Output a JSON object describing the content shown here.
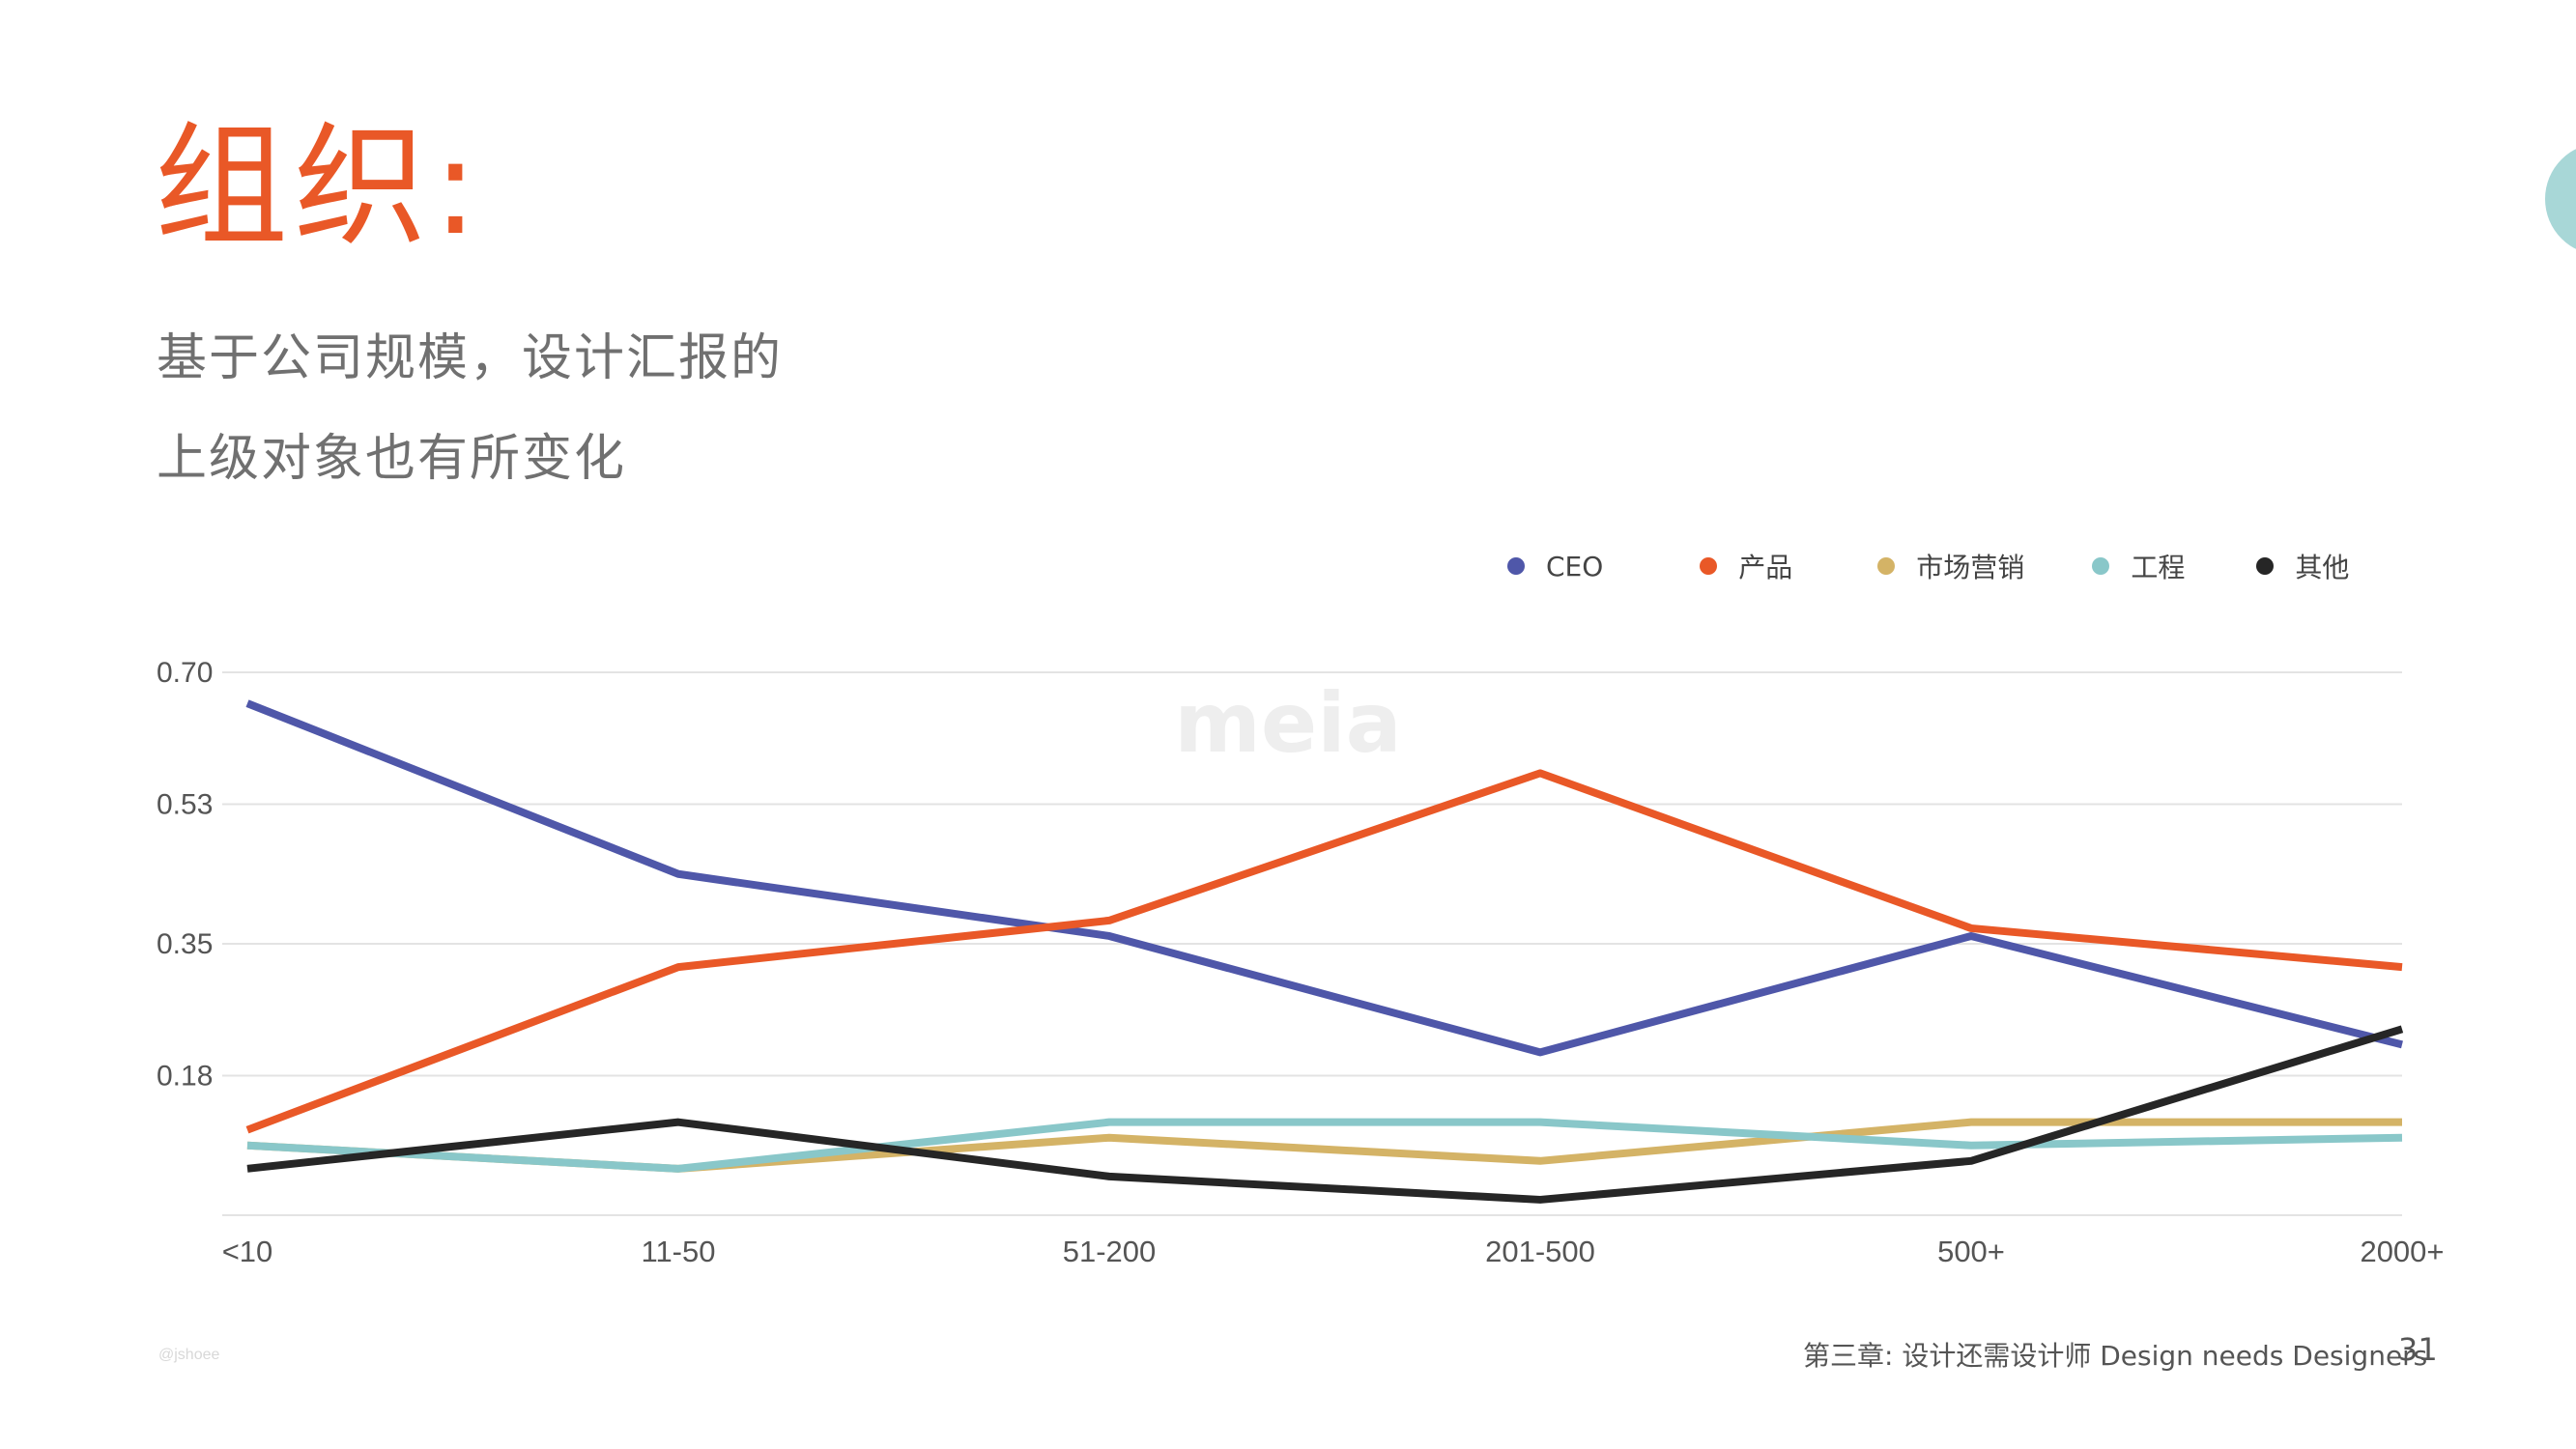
{
  "slide": {
    "title": "组织:",
    "subtitle_line1": "基于公司规模，设计汇报的",
    "subtitle_line2": "上级对象也有所变化",
    "footer": "第三章: 设计还需设计师 Design needs Designers",
    "page_number": "31",
    "handle": "@jshoee"
  },
  "colors": {
    "accent": "#e95827",
    "CEO": "#4f57a9",
    "产品": "#e95827",
    "市场营销": "#d4b366",
    "工程": "#89c7c9",
    "其他": "#262626"
  },
  "chart_data": {
    "type": "line",
    "categories": [
      "<10",
      "11-50",
      "51-200",
      "201-500",
      "500+",
      "2000+"
    ],
    "y_ticks": [
      "0.70",
      "0.53",
      "0.35",
      "0.18"
    ],
    "ylim": [
      0,
      0.7
    ],
    "grid": true,
    "legend_position": "top-right",
    "watermark": "meia",
    "series": [
      {
        "name": "CEO",
        "values": [
          0.66,
          0.44,
          0.36,
          0.21,
          0.36,
          0.22
        ]
      },
      {
        "name": "产品",
        "values": [
          0.11,
          0.32,
          0.38,
          0.57,
          0.37,
          0.32
        ]
      },
      {
        "name": "市场营销",
        "values": [
          0.09,
          0.06,
          0.1,
          0.07,
          0.12,
          0.12
        ]
      },
      {
        "name": "工程",
        "values": [
          0.09,
          0.06,
          0.12,
          0.12,
          0.09,
          0.1
        ]
      },
      {
        "name": "其他",
        "values": [
          0.06,
          0.12,
          0.05,
          0.02,
          0.07,
          0.24
        ]
      }
    ]
  }
}
